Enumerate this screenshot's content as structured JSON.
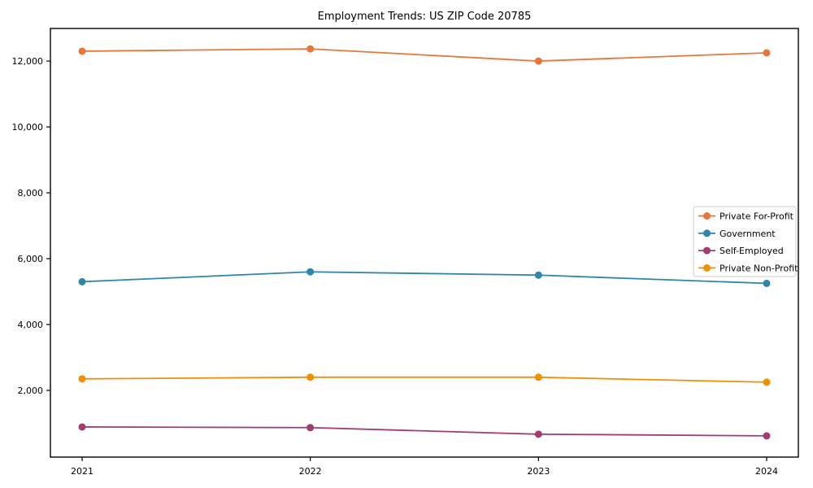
{
  "chart_data": {
    "type": "line",
    "title": "Employment Trends: US ZIP Code 20785",
    "xlabel": "",
    "ylabel": "",
    "x": [
      2021,
      2022,
      2023,
      2024
    ],
    "series": [
      {
        "name": "Private For-Profit",
        "color": "#e8763b",
        "values": [
          12300,
          12370,
          12000,
          12250
        ]
      },
      {
        "name": "Government",
        "color": "#2e86ab",
        "values": [
          5300,
          5600,
          5500,
          5250
        ]
      },
      {
        "name": "Self-Employed",
        "color": "#a23b72",
        "values": [
          890,
          870,
          670,
          620
        ]
      },
      {
        "name": "Private Non-Profit",
        "color": "#f18f01",
        "values": [
          2350,
          2400,
          2400,
          2250
        ]
      }
    ],
    "ylim": [
      -25,
      12990
    ],
    "yticks": [
      2000,
      4000,
      6000,
      8000,
      10000,
      12000
    ],
    "ytick_format": "comma",
    "grid": false,
    "marker": "circle",
    "legend_position": "right",
    "background_color": "#ffffff",
    "axis_color": "#000000",
    "legend_border_color": "#cccccc"
  }
}
